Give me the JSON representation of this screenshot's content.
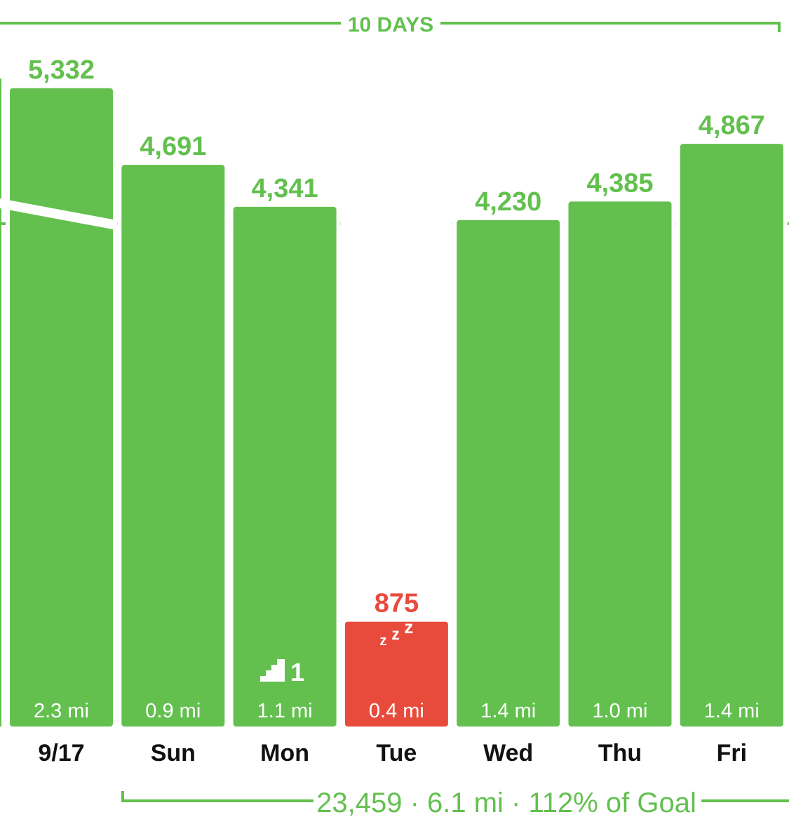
{
  "chart_data": {
    "type": "bar",
    "title": "10 DAYS",
    "categories": [
      "9/17",
      "Sun",
      "Mon",
      "Tue",
      "Wed",
      "Thu",
      "Fri"
    ],
    "values": [
      5332,
      4691,
      4341,
      875,
      4230,
      4385,
      4867
    ],
    "value_labels": [
      "5,332",
      "4,691",
      "4,341",
      "875",
      "4,230",
      "4,385",
      "4,867"
    ],
    "distances": [
      "2.3 mi",
      "0.9 mi",
      "1.1 mi",
      "0.4 mi",
      "1.4 mi",
      "1.0 mi",
      "1.4 mi"
    ],
    "goal": 4200,
    "goal_line": true,
    "ylim": [
      0,
      5600
    ],
    "bar_status": [
      "goal",
      "goal",
      "goal",
      "under",
      "goal",
      "goal",
      "goal"
    ],
    "icons": [
      {
        "bar": 2,
        "name": "stairs-icon",
        "text": "1"
      },
      {
        "bar": 3,
        "name": "sleep-icon",
        "text": "zzz"
      }
    ],
    "summary": "23,459 · 6.1 mi · 112% of Goal",
    "colors": {
      "goal": "#63C04F",
      "under": "#E84B3C",
      "text": "#111111",
      "background": "#ffffff"
    }
  }
}
